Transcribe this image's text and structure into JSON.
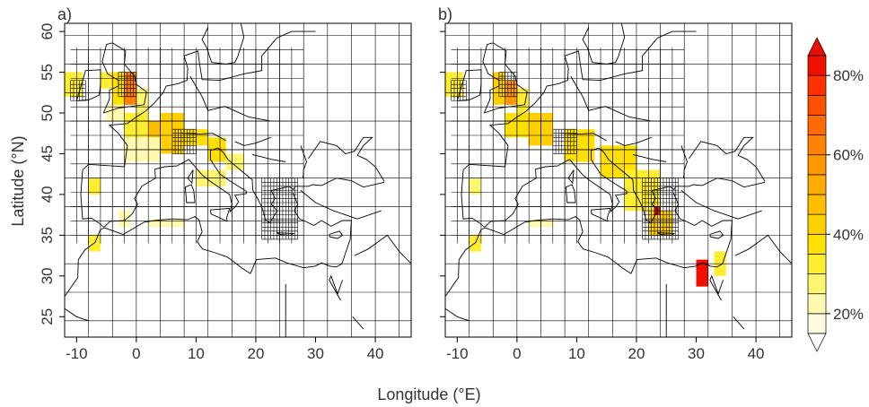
{
  "panels": [
    {
      "id": "a",
      "label": "a)"
    },
    {
      "id": "b",
      "label": "b)"
    }
  ],
  "axes": {
    "x_title": "Longitude (°E)",
    "y_title": "Latitude (°N)",
    "x_range": [
      -12,
      46
    ],
    "y_range": [
      22.5,
      61
    ],
    "x_ticks": [
      -10,
      0,
      10,
      20,
      30,
      40
    ],
    "y_ticks": [
      25,
      30,
      35,
      40,
      45,
      50,
      55,
      60
    ]
  },
  "colorbar": {
    "range": [
      15,
      85
    ],
    "levels": [
      15,
      20,
      25,
      30,
      35,
      40,
      45,
      50,
      55,
      60,
      65,
      70,
      75,
      80,
      85
    ],
    "tick_values": [
      20,
      40,
      60,
      80
    ],
    "tick_labels": [
      "20%",
      "40%",
      "60%",
      "80%"
    ],
    "colors": [
      "#fffde0",
      "#fffab0",
      "#fff670",
      "#ffee30",
      "#ffe000",
      "#ffd000",
      "#ffbf00",
      "#ffab00",
      "#ff9700",
      "#ff8200",
      "#ff6b00",
      "#ff5000",
      "#ff3000",
      "#f01000"
    ],
    "over_arrow_color": "#e81000"
  },
  "chart_data": [
    {
      "type": "heatmap",
      "title": "a)",
      "xlabel": "Longitude (°E)",
      "ylabel": "Latitude (°N)",
      "xlim": [
        -12,
        46
      ],
      "ylim": [
        22.5,
        61
      ],
      "cells": [
        {
          "lon": [
            -6,
            -4
          ],
          "lat": [
            53,
            55
          ],
          "value": 30
        },
        {
          "lon": [
            -4,
            -2
          ],
          "lat": [
            51,
            55
          ],
          "value": 35
        },
        {
          "lon": [
            -2,
            0
          ],
          "lat": [
            51,
            55
          ],
          "value": 60
        },
        {
          "lon": [
            0,
            2
          ],
          "lat": [
            50,
            53
          ],
          "value": 28
        },
        {
          "lon": [
            -5,
            -2
          ],
          "lat": [
            49,
            51
          ],
          "value": 22
        },
        {
          "lon": [
            -2,
            2
          ],
          "lat": [
            47,
            50
          ],
          "value": 30
        },
        {
          "lon": [
            2,
            4
          ],
          "lat": [
            47,
            49
          ],
          "value": 45
        },
        {
          "lon": [
            4,
            8
          ],
          "lat": [
            45,
            50
          ],
          "value": 40
        },
        {
          "lon": [
            8,
            12
          ],
          "lat": [
            46,
            48
          ],
          "value": 38
        },
        {
          "lon": [
            12,
            15
          ],
          "lat": [
            44,
            47
          ],
          "value": 35
        },
        {
          "lon": [
            15,
            18
          ],
          "lat": [
            43,
            45
          ],
          "value": 28
        },
        {
          "lon": [
            -12,
            -9
          ],
          "lat": [
            52,
            55
          ],
          "value": 30
        },
        {
          "lon": [
            -8,
            -6
          ],
          "lat": [
            40,
            42
          ],
          "value": 30
        },
        {
          "lon": [
            -3,
            -1
          ],
          "lat": [
            36,
            38
          ],
          "value": 20
        },
        {
          "lon": [
            -8,
            -6
          ],
          "lat": [
            33,
            35
          ],
          "value": 30
        },
        {
          "lon": [
            2,
            8
          ],
          "lat": [
            36,
            37
          ],
          "value": 20
        },
        {
          "lon": [
            10,
            15
          ],
          "lat": [
            41,
            43
          ],
          "value": 25
        },
        {
          "lon": [
            -2,
            4
          ],
          "lat": [
            44,
            47
          ],
          "value": 20
        }
      ]
    },
    {
      "type": "heatmap",
      "title": "b)",
      "xlabel": "Longitude (°E)",
      "ylabel": "Latitude (°N)",
      "xlim": [
        -12,
        46
      ],
      "ylim": [
        22.5,
        61
      ],
      "cells": [
        {
          "lon": [
            -4,
            -2
          ],
          "lat": [
            51,
            55
          ],
          "value": 40
        },
        {
          "lon": [
            -2,
            0
          ],
          "lat": [
            51,
            54
          ],
          "value": 55
        },
        {
          "lon": [
            0,
            2
          ],
          "lat": [
            50,
            53
          ],
          "value": 30
        },
        {
          "lon": [
            -2,
            2
          ],
          "lat": [
            47,
            50
          ],
          "value": 35
        },
        {
          "lon": [
            2,
            6
          ],
          "lat": [
            46,
            50
          ],
          "value": 40
        },
        {
          "lon": [
            8,
            13
          ],
          "lat": [
            44,
            48
          ],
          "value": 38
        },
        {
          "lon": [
            14,
            20
          ],
          "lat": [
            42,
            46
          ],
          "value": 35
        },
        {
          "lon": [
            18,
            24
          ],
          "lat": [
            38,
            43
          ],
          "value": 30
        },
        {
          "lon": [
            22,
            26
          ],
          "lat": [
            35,
            38
          ],
          "value": 40
        },
        {
          "lon": [
            23,
            24
          ],
          "lat": [
            37.5,
            38.5
          ],
          "value": 80
        },
        {
          "lon": [
            30,
            32
          ],
          "lat": [
            28.7,
            32
          ],
          "value": 82
        },
        {
          "lon": [
            33,
            35
          ],
          "lat": [
            30,
            33
          ],
          "value": 30
        },
        {
          "lon": [
            -8,
            -6
          ],
          "lat": [
            33,
            35
          ],
          "value": 30
        },
        {
          "lon": [
            -12,
            -9
          ],
          "lat": [
            52,
            55
          ],
          "value": 30
        },
        {
          "lon": [
            -8,
            -6
          ],
          "lat": [
            40,
            42
          ],
          "value": 25
        },
        {
          "lon": [
            2,
            6
          ],
          "lat": [
            36,
            37
          ],
          "value": 20
        }
      ]
    }
  ]
}
